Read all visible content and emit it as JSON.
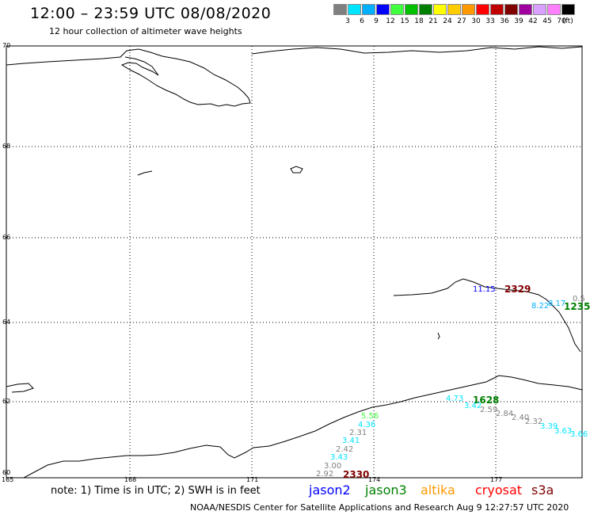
{
  "header": {
    "title": "12:00 – 23:59 UTC 08/08/2020",
    "subtitle": "12 hour collection of altimeter wave heights"
  },
  "scale": {
    "unit": "(ft)",
    "bins": [
      {
        "label": "3",
        "color": "#808080"
      },
      {
        "label": "6",
        "color": "#00e5ff"
      },
      {
        "label": "9",
        "color": "#00b0ff"
      },
      {
        "label": "12",
        "color": "#0000ff"
      },
      {
        "label": "15",
        "color": "#40ff40"
      },
      {
        "label": "18",
        "color": "#00c000"
      },
      {
        "label": "21",
        "color": "#008000"
      },
      {
        "label": "24",
        "color": "#ffff00"
      },
      {
        "label": "27",
        "color": "#ffcc00"
      },
      {
        "label": "30",
        "color": "#ff9900"
      },
      {
        "label": "33",
        "color": "#ff0000"
      },
      {
        "label": "36",
        "color": "#c00000"
      },
      {
        "label": "39",
        "color": "#800000"
      },
      {
        "label": "42",
        "color": "#a000a0"
      },
      {
        "label": "45",
        "color": "#d8a0ff"
      },
      {
        "label": "70",
        "color": "#ff80ff"
      },
      {
        "label": "",
        "color": "#000000"
      }
    ]
  },
  "axes": {
    "lat_labels": [
      "70",
      "68",
      "66",
      "64",
      "62",
      "60"
    ],
    "lon_labels": [
      "165",
      "168",
      "171",
      "174",
      "177"
    ]
  },
  "observations": [
    {
      "text": "11.15",
      "color": "#0000ff"
    },
    {
      "text": "2329",
      "color": "#800000",
      "kind": "time"
    },
    {
      "text": "8.22",
      "color": "#00b0ff"
    },
    {
      "text": "8.17",
      "color": "#00b0ff"
    },
    {
      "text": "0.5",
      "color": "#808080"
    },
    {
      "text": "1235",
      "color": "#008000",
      "kind": "time"
    },
    {
      "text": "4.73",
      "color": "#00e5ff"
    },
    {
      "text": "1628",
      "color": "#008000",
      "kind": "time"
    },
    {
      "text": "3.42",
      "color": "#00e5ff"
    },
    {
      "text": "2.59",
      "color": "#808080"
    },
    {
      "text": "2.84",
      "color": "#808080"
    },
    {
      "text": "2.40",
      "color": "#808080"
    },
    {
      "text": "2.32",
      "color": "#808080"
    },
    {
      "text": "3.39",
      "color": "#00e5ff"
    },
    {
      "text": "3.63",
      "color": "#00e5ff"
    },
    {
      "text": "3.66",
      "color": "#00e5ff"
    },
    {
      "text": "5.56",
      "color": "#40ff40"
    },
    {
      "text": "4.36",
      "color": "#00e5ff"
    },
    {
      "text": "2.31",
      "color": "#808080"
    },
    {
      "text": "3.41",
      "color": "#00e5ff"
    },
    {
      "text": "2.42",
      "color": "#808080"
    },
    {
      "text": "3.43",
      "color": "#00e5ff"
    },
    {
      "text": "3.00",
      "color": "#808080"
    },
    {
      "text": "2.92",
      "color": "#808080"
    },
    {
      "text": "2330",
      "color": "#800000",
      "kind": "time"
    }
  ],
  "note": "note: 1) Time is in UTC; 2) SWH is in feet",
  "satellites": [
    {
      "name": "jason2",
      "color": "#0000ff"
    },
    {
      "name": "jason3",
      "color": "#008000"
    },
    {
      "name": "altika",
      "color": "#ff9900"
    },
    {
      "name": "cryosat",
      "color": "#ff0000"
    },
    {
      "name": "s3a",
      "color": "#800000"
    }
  ],
  "footer": "NOAA/NESDIS Center for Satellite Applications and Research    Aug  9 12:27:57 UTC 2020"
}
